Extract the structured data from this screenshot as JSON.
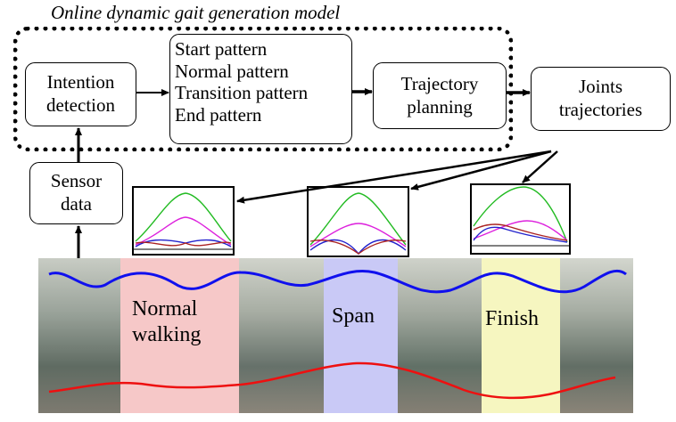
{
  "title": "Online dynamic gait generation model",
  "boxes": {
    "intention": [
      "Intention",
      "detection"
    ],
    "patterns": [
      "Start pattern",
      "Normal pattern",
      "Transition pattern",
      "End pattern"
    ],
    "trajectory": [
      "Trajectory",
      "planning"
    ],
    "joints": [
      "Joints",
      "trajectories"
    ],
    "sensor": [
      "Sensor",
      "data"
    ]
  },
  "phases": {
    "normal": [
      "Normal",
      "walking"
    ],
    "span": "Span",
    "finish": "Finish"
  },
  "colors": {
    "normal_band": "#f6c8c8",
    "span_band": "#c9c9f6",
    "finish_band": "#f6f6c0",
    "upper_curve": "#1010ee",
    "lower_curve": "#ee1010",
    "plot_green": "#22bb22",
    "plot_magenta": "#dd22dd",
    "plot_blue": "#2222cc",
    "plot_red": "#aa2222"
  },
  "icons": [
    "arrow-right-icon",
    "arrow-up-icon"
  ]
}
